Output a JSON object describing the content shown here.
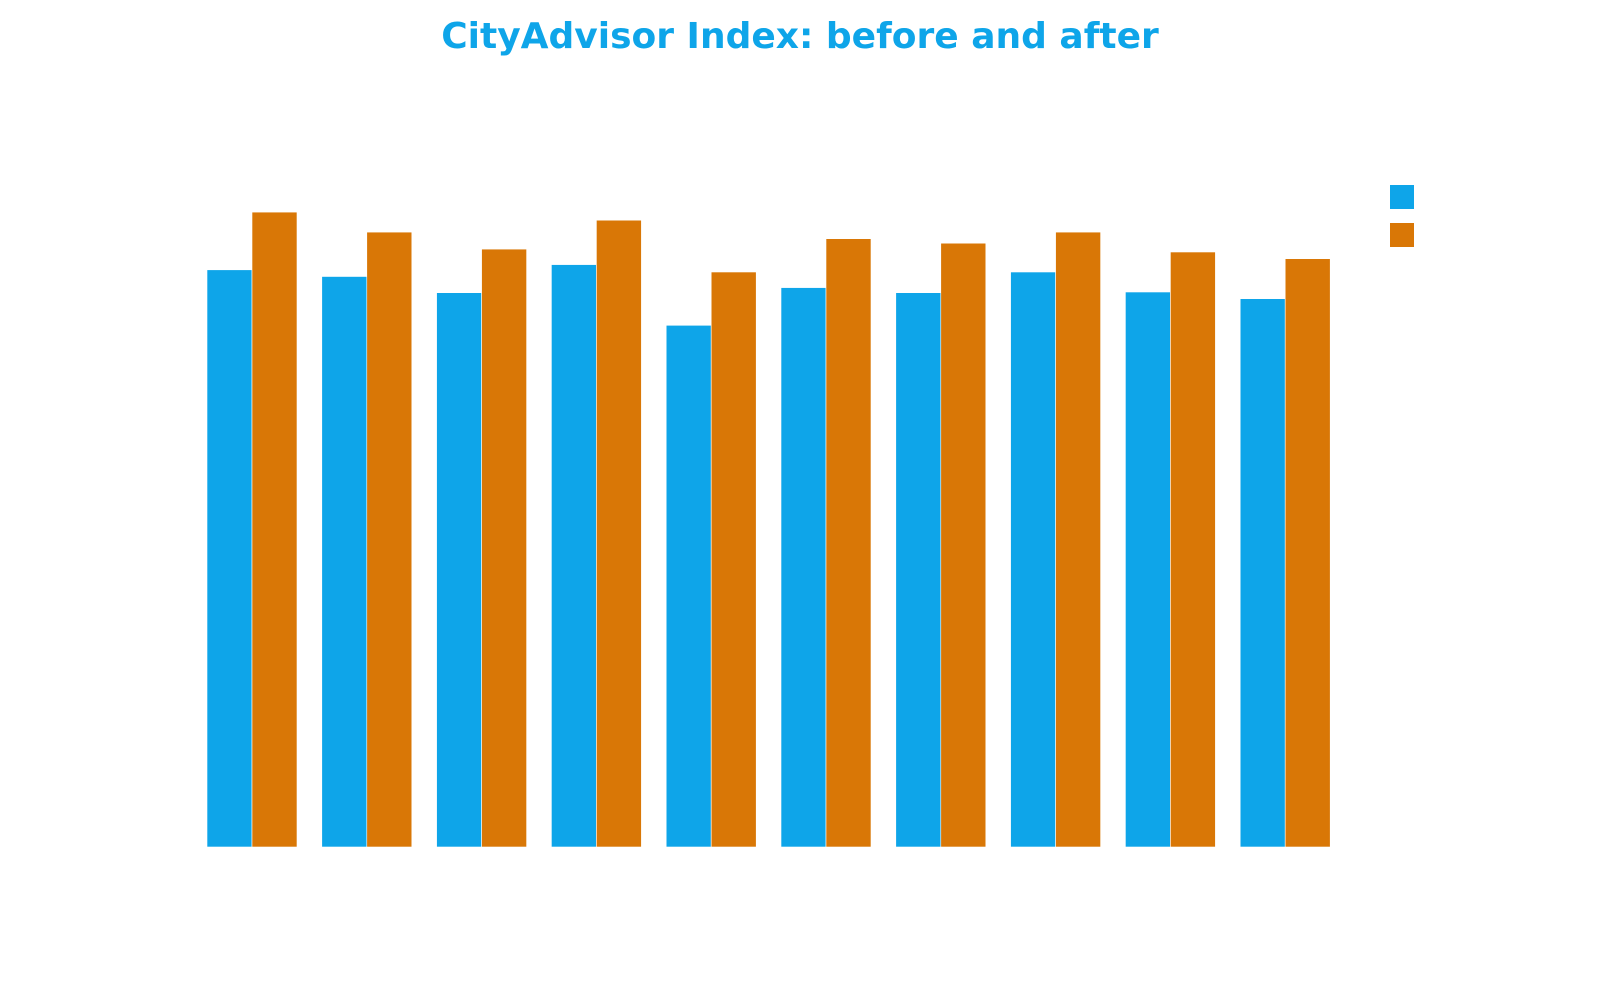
{
  "title": "CityAdvisor Index: before and after",
  "colors": {
    "title": "#0ea5e9",
    "series_before": "#0ea5e9",
    "series_after": "#d97706"
  },
  "chart_data": {
    "type": "bar",
    "title": "CityAdvisor Index: before and after",
    "xlabel": "",
    "ylabel": "",
    "ylim": [
      0,
      100
    ],
    "grid": false,
    "legend": "top-right",
    "categories": [
      "",
      "",
      "",
      "",
      "",
      "",
      "",
      "",
      "",
      ""
    ],
    "series": [
      {
        "color": "#0ea5e9",
        "values": [
          78.0,
          77.1,
          74.9,
          78.7,
          70.5,
          75.6,
          74.9,
          77.7,
          75.0,
          74.1
        ]
      },
      {
        "color": "#d97706",
        "values": [
          85.8,
          83.1,
          80.8,
          84.7,
          77.7,
          82.2,
          81.6,
          83.1,
          80.4,
          79.5
        ]
      }
    ]
  }
}
